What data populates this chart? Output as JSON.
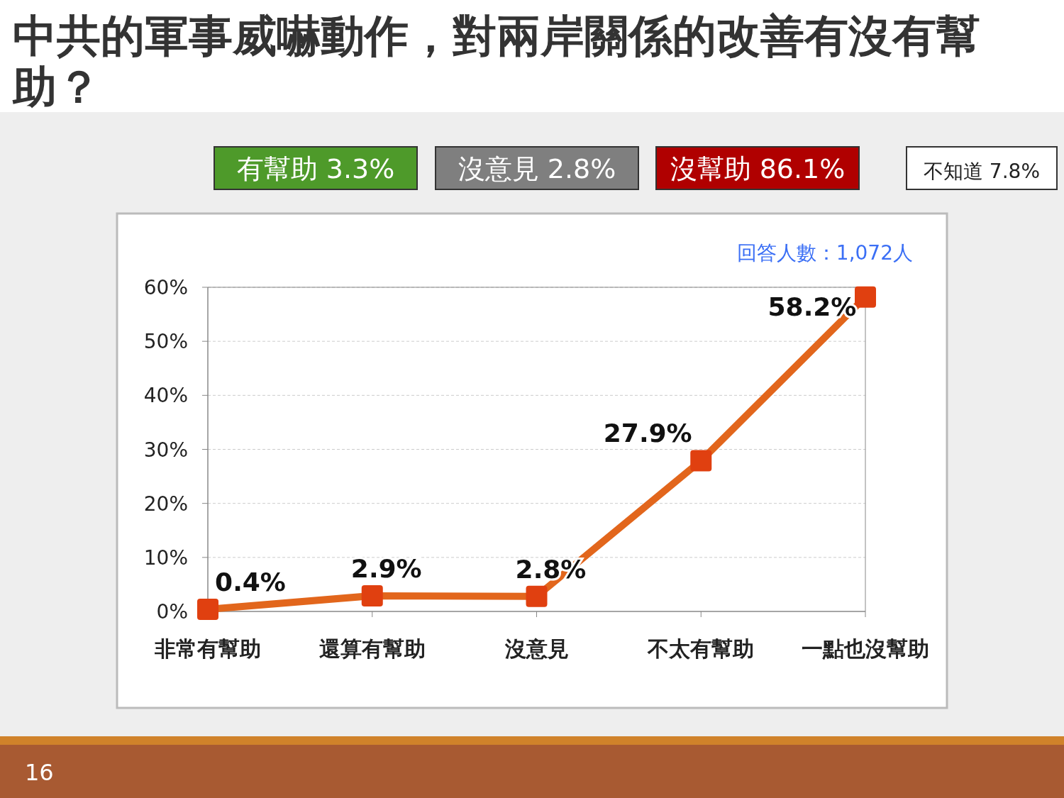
{
  "chart_data": {
    "type": "line",
    "title": "中共的軍事威嚇動作，對兩岸關係的改善有沒有幫助？",
    "categories": [
      "非常有幫助",
      "還算有幫助",
      "沒意見",
      "不太有幫助",
      "一點也沒幫助"
    ],
    "series": [
      {
        "color": "#e2661c",
        "values": [
          0.4,
          2.9,
          2.8,
          27.9,
          58.2
        ],
        "value_labels": [
          "0.4%",
          "2.9%",
          "2.8%",
          "27.9%",
          "58.2%"
        ]
      }
    ],
    "ylim": [
      0,
      60
    ],
    "yticks": [
      {
        "value": 0,
        "label": "0%"
      },
      {
        "value": 10,
        "label": "10%"
      },
      {
        "value": 20,
        "label": "20%"
      },
      {
        "value": 30,
        "label": "30%"
      },
      {
        "value": 40,
        "label": "40%"
      },
      {
        "value": 50,
        "label": "50%"
      },
      {
        "value": 60,
        "label": "60%"
      }
    ],
    "grid": "y",
    "marker": "square",
    "line_style": "solid",
    "annotations": [
      "有幫助 3.3%",
      "沒意見 2.8%",
      "沒幫助 86.1%",
      "不知道 7.8%",
      "回答人數：1,072人",
      "16"
    ]
  }
}
